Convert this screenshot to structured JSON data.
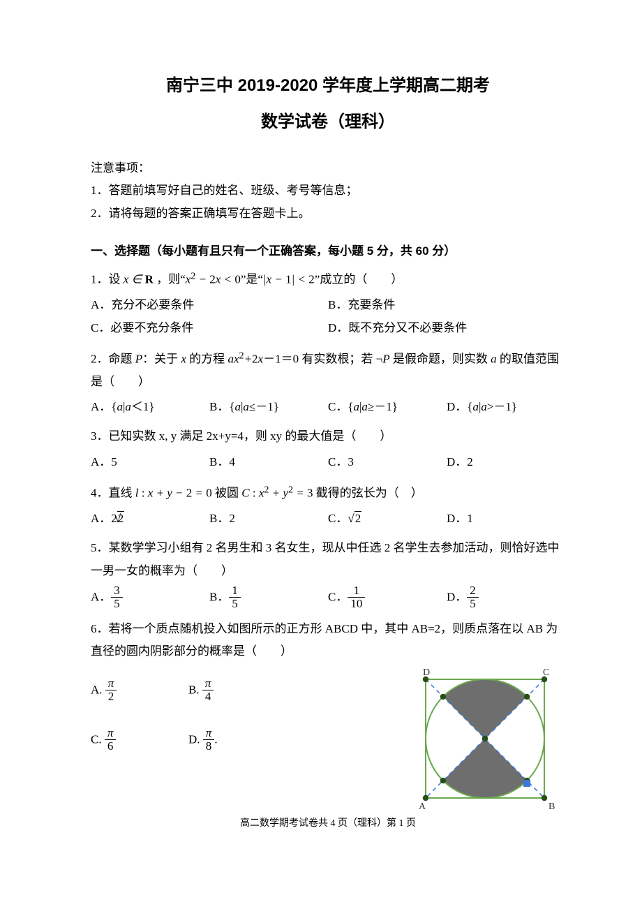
{
  "header": {
    "title_main": "南宁三中 2019-2020 学年度上学期高二期考",
    "title_sub": "数学试卷（理科）"
  },
  "notice": {
    "head": "注意事项：",
    "items": [
      "1．答题前填写好自己的姓名、班级、考号等信息；",
      "2．请将每题的答案正确填写在答题卡上。"
    ]
  },
  "section1": {
    "head": "一、选择题（每小题有且只有一个正确答案，每小题 5 分，共 60 分）"
  },
  "q1": {
    "stem_pre": "1．设 ",
    "stem_var": "x ∈ R",
    "stem_mid1": " ，则“",
    "expr1_html": "x<sup>2</sup> − 2x < 0",
    "stem_mid2": "”是“",
    "expr2_html": "|x − 1| < 2",
    "stem_mid3": "”成立的（　　）",
    "opts": {
      "A": "A．充分不必要条件",
      "B": "B．充要条件",
      "C": "C．必要不充分条件",
      "D": "D．既不充分又不必要条件"
    }
  },
  "q2": {
    "stem_html": "2．命题 <span class=\"math\">P</span>：关于 <span class=\"math\">x</span> 的方程 <span class=\"math\">ax<span class=\"rm\"><sup>2</sup></span>+<span class=\"rm\">2</span>x<span class=\"rm\">－1＝0</span></span> 有实数根；若 <span class=\"math\"><span class=\"rm\">¬</span>P</span> 是假命题，则实数 <span class=\"math\">a</span> 的取值范围是（　　）",
    "opts": {
      "A": "A．{a|a＜1}",
      "B": "B．{a|a≤﹣1}",
      "C": "C．{a|a≥﹣1}",
      "D": "D．{a|a>﹣1}"
    }
  },
  "q3": {
    "stem": "3．已知实数 x, y 满足 2x+y=4，则 xy 的最大值是（　　）",
    "opts": {
      "A": "A．5",
      "B": "B．4",
      "C": "C．3",
      "D": "D．2"
    }
  },
  "q4": {
    "stem_html": "4．直线 <span class=\"math\">l</span> : <span class=\"math\">x + y − <span class=\"rm\">2</span> = <span class=\"rm\">0</span></span> 被圆 <span class=\"math\">C</span> : <span class=\"math\">x<span class=\"rm\"><sup>2</sup></span> + y<span class=\"rm\"><sup>2</sup></span> = <span class=\"rm\">3</span></span> 截得的弦长为（　）",
    "opts": {
      "A": "A．2√2",
      "B": "B．2",
      "C": "C．√2",
      "D": "D．1"
    }
  },
  "q5": {
    "stem": "5．某数学学习小组有 2 名男生和 3 名女生，现从中任选 2 名学生去参加活动，则恰好选中一男一女的概率为（　　）",
    "opts": {
      "A": {
        "label": "A．",
        "num": "3",
        "den": "5"
      },
      "B": {
        "label": "B．",
        "num": "1",
        "den": "5"
      },
      "C": {
        "label": "C．",
        "num": "1",
        "den": "10"
      },
      "D": {
        "label": "D．",
        "num": "2",
        "den": "5"
      }
    }
  },
  "q6": {
    "stem": "6．若将一个质点随机投入如图所示的正方形 ABCD 中，其中 AB=2，则质点落在以 AB 为直径的圆内阴影部分的概率是（　　）",
    "opts": {
      "A": {
        "label": "A.",
        "num": "π",
        "den": "2"
      },
      "B": {
        "label": "B.",
        "num": "π",
        "den": "4"
      },
      "C": {
        "label": "C.",
        "num": "π",
        "den": "6"
      },
      "D": {
        "label": "D.",
        "num": "π",
        "den": "8"
      }
    },
    "figure": {
      "size": 200,
      "square_color": "#6aa84f",
      "circle_color": "#6aa84f",
      "diag_color": "#3c78d8",
      "diag_dash": "6,5",
      "shade_fill": "#666666",
      "shade_opacity": 0.95,
      "node_fill": "#274e13",
      "bluept_fill": "#3c78d8",
      "node_r": 4.2,
      "labels": {
        "A": "A",
        "B": "B",
        "C": "C",
        "D": "D"
      },
      "label_font": 14,
      "label_color": "#333333"
    }
  },
  "footer": "高二数学期考试卷共 4 页（理科）第 1 页"
}
